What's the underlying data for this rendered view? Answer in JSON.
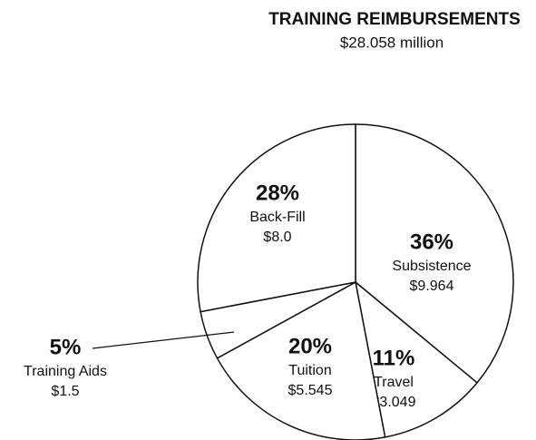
{
  "chart_data": {
    "type": "pie",
    "title": "TRAINING REIMBURSEMENTS",
    "subtitle": "$28.058 million",
    "categories": [
      "Subsistence",
      "Travel",
      "Tuition",
      "Training Aids",
      "Back-Fill"
    ],
    "values": [
      36,
      11,
      20,
      5,
      28
    ],
    "value_labels": [
      "36%",
      "11%",
      "20%",
      "5%",
      "28%"
    ],
    "amount_labels": [
      "$9.964",
      "$3.049",
      "$5.545",
      "$1.5",
      "$8.0"
    ],
    "color": "#ffffff"
  }
}
